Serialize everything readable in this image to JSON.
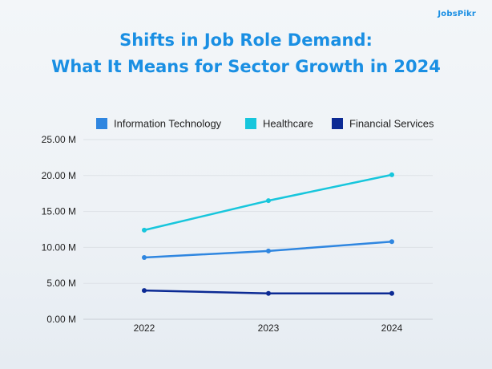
{
  "brand": {
    "logo_text": "JobsPikr"
  },
  "chart_data": {
    "type": "line",
    "title_lines": [
      "Shifts in Job Role Demand:",
      "What It Means for Sector Growth in 2024"
    ],
    "x": [
      "2022",
      "2023",
      "2024"
    ],
    "ylim": [
      0,
      25
    ],
    "y_ticks": [
      0,
      5,
      10,
      15,
      20,
      25
    ],
    "y_tick_labels": [
      "0.00 M",
      "5.00 M",
      "10.00 M",
      "15.00 M",
      "20.00 M",
      "25.00 M"
    ],
    "grid": "horizontal",
    "legend_position": "top",
    "series": [
      {
        "name": "Information Technology",
        "color": "#2f86e0",
        "values": [
          8.6,
          9.5,
          10.8
        ]
      },
      {
        "name": "Healthcare",
        "color": "#17c6dc",
        "values": [
          12.4,
          16.5,
          20.1
        ]
      },
      {
        "name": "Financial Services",
        "color": "#0c2a94",
        "values": [
          4.0,
          3.6,
          3.6
        ]
      }
    ]
  }
}
